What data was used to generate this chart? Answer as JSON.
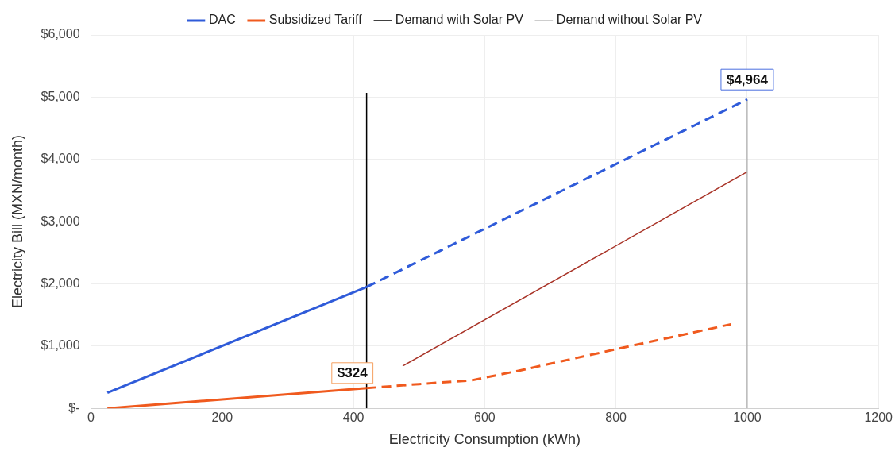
{
  "chart_data": {
    "type": "line",
    "xlabel": "Electricity Consumption (kWh)",
    "ylabel": "Electricity Bill (MXN/month)",
    "xlim": [
      0,
      1200
    ],
    "xticks": [
      0,
      200,
      400,
      600,
      800,
      1000,
      1200
    ],
    "ylim": [
      0,
      6000
    ],
    "yticks": [
      {
        "value": 0,
        "label": "$-"
      },
      {
        "value": 1000,
        "label": "$1,000"
      },
      {
        "value": 2000,
        "label": "$2,000"
      },
      {
        "value": 3000,
        "label": "$3,000"
      },
      {
        "value": 4000,
        "label": "$4,000"
      },
      {
        "value": 5000,
        "label": "$5,000"
      },
      {
        "value": 6000,
        "label": "$6,000"
      }
    ],
    "grid": true,
    "legend": "top",
    "marker": "none",
    "series": [
      {
        "name": "DAC",
        "color": "#2f5bd9",
        "line_style": "solid",
        "x": [
          25,
          420
        ],
        "values": [
          250,
          1950
        ]
      },
      {
        "color": "#2f5bd9",
        "line_style": "dashed",
        "x": [
          420,
          1000
        ],
        "values": [
          1950,
          4964
        ]
      },
      {
        "name": "Subsidized Tariff",
        "color": "#f05a1e",
        "line_style": "solid",
        "x": [
          25,
          420
        ],
        "values": [
          0,
          324
        ]
      },
      {
        "color": "#f05a1e",
        "line_style": "dashed",
        "x": [
          420,
          500,
          580,
          650,
          800,
          975
        ],
        "values": [
          324,
          390,
          450,
          600,
          950,
          1350
        ]
      },
      {
        "name": "Demand with Solar PV",
        "color": "#000000",
        "line_style": "solid",
        "x": [
          420,
          420
        ],
        "values": [
          0,
          5070
        ]
      },
      {
        "name": "Demand without Solar PV",
        "color": "#9a9a9a",
        "line_style": "solid",
        "x": [
          1000,
          1000
        ],
        "values": [
          0,
          4964
        ]
      },
      {
        "color": "#a83226",
        "line_style": "solid",
        "x": [
          1000,
          475
        ],
        "values": [
          3800,
          680
        ]
      }
    ],
    "annotations": [
      {
        "text": "$4,964",
        "x": 1000,
        "y": 4964
      },
      {
        "text": "$324",
        "x": 420,
        "y": 324
      }
    ]
  }
}
